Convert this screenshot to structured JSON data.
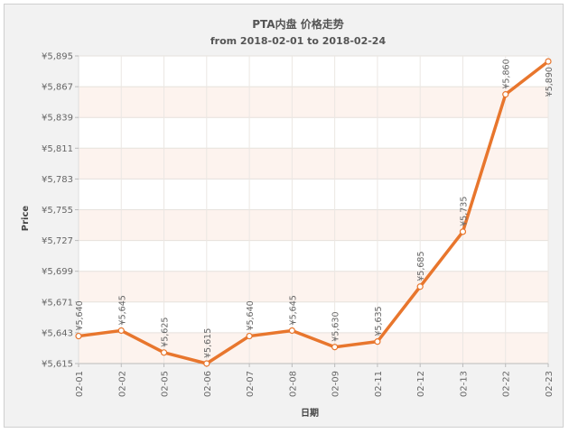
{
  "chart_data": {
    "type": "line",
    "title": "PTA内盘 价格走势",
    "subtitle": "from 2018-02-01 to 2018-02-24",
    "xlabel": "日期",
    "ylabel": "Price",
    "categories": [
      "02-01",
      "02-02",
      "02-05",
      "02-06",
      "02-07",
      "02-08",
      "02-09",
      "02-11",
      "02-12",
      "02-13",
      "02-22",
      "02-23"
    ],
    "series": [
      {
        "values": [
          5640,
          5645,
          5625,
          5615,
          5640,
          5645,
          5630,
          5635,
          5685,
          5735,
          5860,
          5890
        ]
      }
    ],
    "data_labels": [
      "¥5,640",
      "¥5,645",
      "¥5,625",
      "¥5,615",
      "¥5,640",
      "¥5,645",
      "¥5,630",
      "¥5,635",
      "¥5,685",
      "¥5,735",
      "¥5,860",
      "¥5,890"
    ],
    "yticks": [
      5615,
      5643,
      5671,
      5699,
      5727,
      5755,
      5783,
      5811,
      5839,
      5867,
      5895
    ],
    "ytick_labels": [
      "¥5,615",
      "¥5,643",
      "¥5,671",
      "¥5,699",
      "¥5,727",
      "¥5,755",
      "¥5,783",
      "¥5,811",
      "¥5,839",
      "¥5,867",
      "¥5,895"
    ],
    "ylim": [
      5615,
      5895
    ],
    "grid": true,
    "legend": "none",
    "colors": {
      "line": "#e8762d",
      "band_a": "#fdf3ee",
      "band_b": "#ffffff",
      "marker_fill": "#ffffff"
    }
  }
}
